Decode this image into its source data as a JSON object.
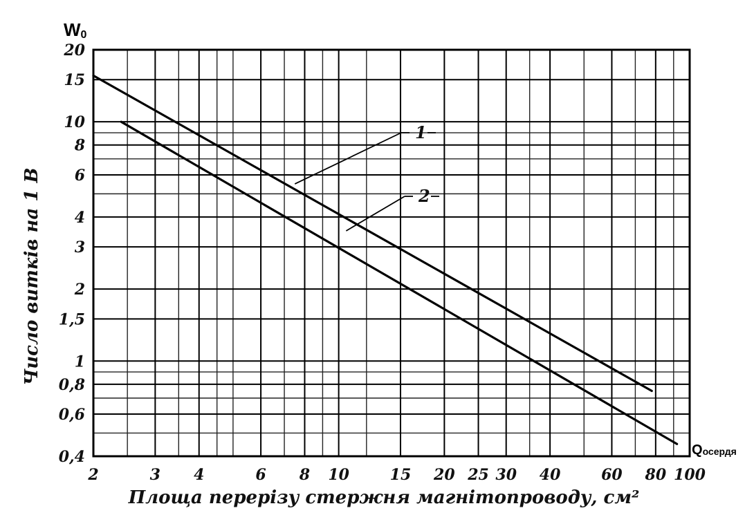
{
  "chart_data": {
    "type": "line",
    "x_scale": "log",
    "y_scale": "log",
    "xlim": [
      2,
      100
    ],
    "ylim": [
      0.4,
      20
    ],
    "grid": true,
    "x_ticks": [
      2,
      3,
      4,
      6,
      8,
      10,
      15,
      20,
      25,
      30,
      40,
      60,
      80,
      100
    ],
    "x_tick_labels": [
      "2",
      "3",
      "4",
      "6",
      "8",
      "10",
      "15",
      "20",
      "25",
      "30",
      "40",
      "60",
      "80",
      "100"
    ],
    "y_ticks": [
      0.4,
      0.6,
      0.8,
      1,
      1.5,
      2,
      3,
      4,
      6,
      8,
      10,
      15,
      20
    ],
    "y_tick_labels": [
      "0,4",
      "0,6",
      "0,8",
      "1",
      "1,5",
      "2",
      "3",
      "4",
      "6",
      "8",
      "10",
      "15",
      "20"
    ],
    "y_minor_lines": [
      0.5,
      0.7,
      0.9,
      5,
      7,
      9
    ],
    "x_minor_lines": [
      2.5,
      3.5,
      4.5,
      5,
      7,
      9,
      12,
      35,
      50,
      70,
      90
    ],
    "xlabel": "Площа перерізу стержня магнітопроводу, см²",
    "ylabel": "Число витків на 1 В",
    "y_corner_label": {
      "main": "W",
      "sub": "0"
    },
    "x_corner_label": {
      "main": "Q",
      "sub": "осердя"
    },
    "series": [
      {
        "name": "1",
        "x": [
          2,
          78
        ],
        "y": [
          15.6,
          0.75
        ]
      },
      {
        "name": "2",
        "x": [
          2.4,
          92
        ],
        "y": [
          10,
          0.45
        ]
      }
    ],
    "annotations": [
      {
        "text": "1",
        "point_x": 7.5,
        "point_y": 5.5
      },
      {
        "text": "2",
        "point_x": 10.5,
        "point_y": 3.5
      }
    ]
  }
}
